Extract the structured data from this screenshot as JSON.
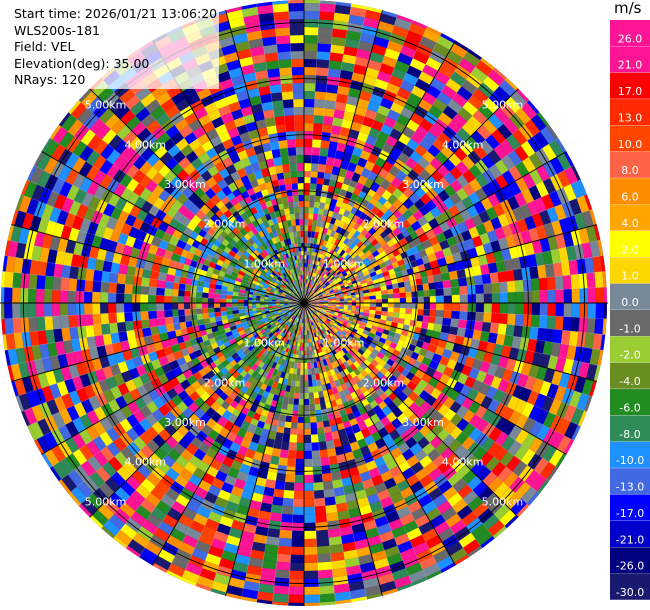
{
  "header": {
    "start_time": "Start time: 2026/01/21 13:06:20",
    "instrument": "WLS200s-181",
    "field": "Field: VEL",
    "elevation": "Elevation(deg): 35.00",
    "nrays": "NRays: 120"
  },
  "chart_data": {
    "type": "heatmap",
    "projection": "polar-ppi",
    "nrays": 120,
    "range_labels": [
      "1.00km",
      "2.00km",
      "3.00km",
      "4.00km",
      "5.00km"
    ],
    "range_rings_km": [
      1,
      2,
      3,
      4,
      5
    ],
    "max_range_km": 5.4,
    "colorbar": {
      "unit": "m/s",
      "ticks": [
        "26.0",
        "21.0",
        "17.0",
        "13.0",
        "10.0",
        "8.0",
        "6.0",
        "4.0",
        "2.0",
        "1.0",
        "0.0",
        "-1.0",
        "-2.0",
        "-4.0",
        "-6.0",
        "-8.0",
        "-10.0",
        "-13.0",
        "-17.0",
        "-21.0",
        "-26.0",
        "-30.0"
      ],
      "colors": [
        "#ff1493",
        "#ff1493",
        "#ff0000",
        "#ff2a00",
        "#ff4500",
        "#ff6347",
        "#ff8c00",
        "#ffa500",
        "#ffff00",
        "#ffd700",
        "#778899",
        "#696969",
        "#9acd32",
        "#6b8e23",
        "#228b22",
        "#2e8b57",
        "#1e90ff",
        "#4169e1",
        "#0000ff",
        "#0000cd",
        "#000080",
        "#191970"
      ]
    }
  }
}
